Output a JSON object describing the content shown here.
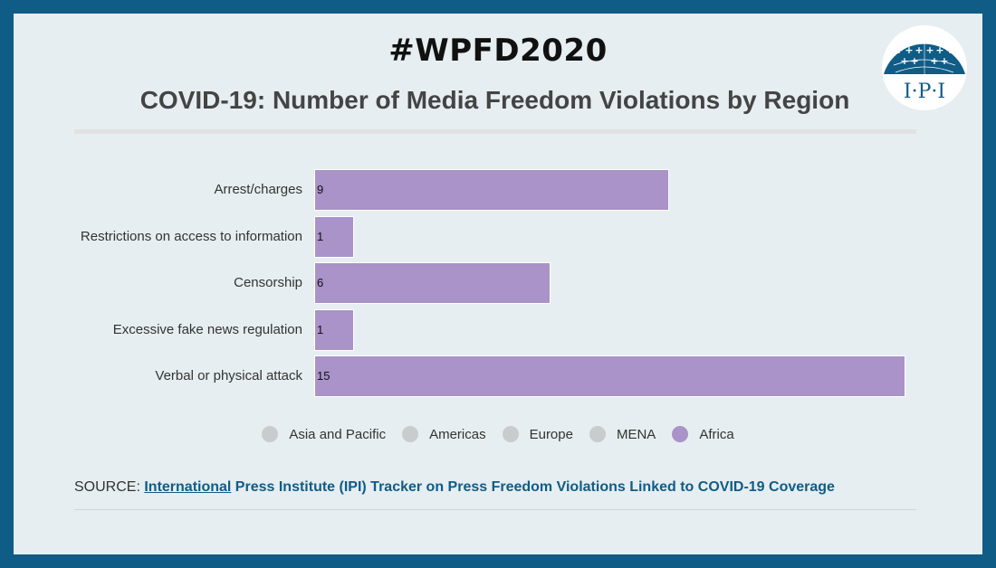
{
  "header": {
    "hashtag": "#WPFD2020",
    "title": "COVID-19: Number of Media Freedom Violations by Region"
  },
  "logo": {
    "text": "I·P·I",
    "icon": "ipi-globe-logo"
  },
  "chart_data": {
    "type": "bar",
    "orientation": "horizontal",
    "categories": [
      "Arrest/charges",
      "Restrictions on access to information",
      "Censorship",
      "Excessive fake news regulation",
      "Verbal or physical attack"
    ],
    "series": [
      {
        "name": "Africa",
        "values": [
          9,
          1,
          6,
          1,
          15
        ]
      }
    ],
    "xlim": [
      0,
      15
    ],
    "grid": false,
    "legend": {
      "placement": "bottom",
      "entries": [
        {
          "label": "Asia and Pacific",
          "color": "#c9ccce",
          "active": false
        },
        {
          "label": "Americas",
          "color": "#c9ccce",
          "active": false
        },
        {
          "label": "Europe",
          "color": "#c9ccce",
          "active": false
        },
        {
          "label": "MENA",
          "color": "#c9ccce",
          "active": false
        },
        {
          "label": "Africa",
          "color": "#a993c8",
          "active": true
        }
      ]
    }
  },
  "source": {
    "prefix": "SOURCE: ",
    "link_first": "International",
    "link_rest": " Press Institute (IPI) Tracker on Press Freedom Violations Linked to COVID-19 Coverage"
  },
  "colors": {
    "frame": "#0f5c87",
    "background": "#e6eef1",
    "bar": "#a993c8",
    "inactive_legend": "#c9ccce",
    "link": "#0f5c87"
  }
}
